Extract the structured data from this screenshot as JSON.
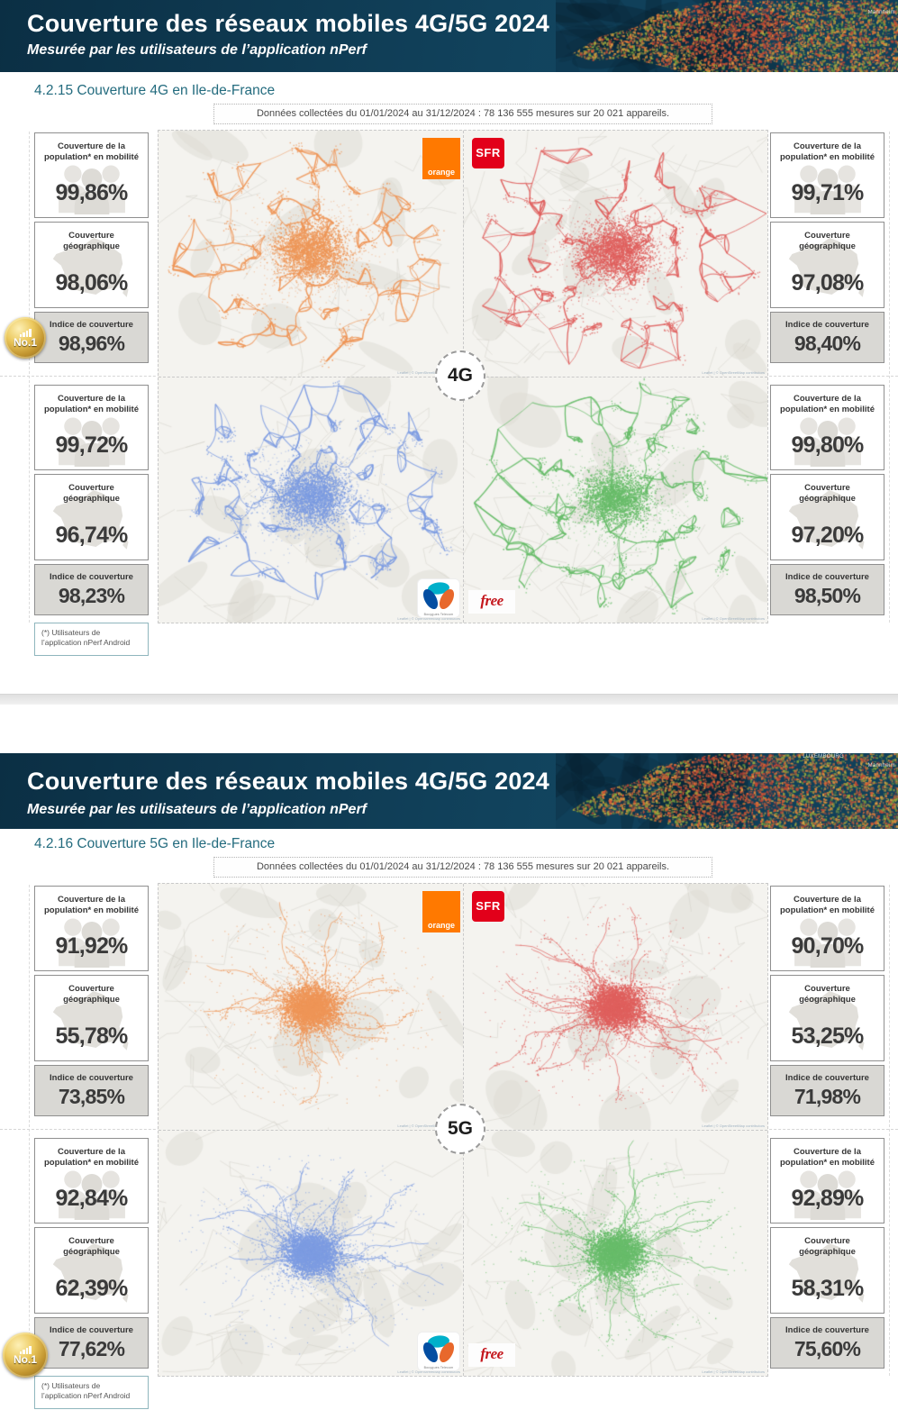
{
  "page": {
    "header": {
      "title": "Couverture des réseaux mobiles 4G/5G 2024",
      "subtitle": "Mesurée par les utilisateurs de l’application nPerf",
      "map_labels": [
        "LUXEMBOURG",
        "Mannheim"
      ]
    },
    "data_note": "Données collectées du 01/01/2024 au 31/12/2024 : 78 136 555 mesures sur 20 021 appareils.",
    "footnote": "(*) Utilisateurs de l’application nPerf Android",
    "badge_label": "No.1",
    "map_attribution": "Leaflet | © OpenStreetMap contributors",
    "stat_labels": {
      "population": "Couverture de la population* en mobilité",
      "geographic": "Couverture géographique",
      "index": "Indice de couverture"
    }
  },
  "sections": [
    {
      "section_title": "4.2.15 Couverture 4G en Ile-de-France",
      "tech_label": "4G",
      "operators": [
        {
          "name": "Orange",
          "logo_text": "orange",
          "color": "#ef9658",
          "population": "99,86%",
          "geographic": "98,06%",
          "index": "98,96%",
          "no1": true
        },
        {
          "name": "SFR",
          "logo_text": "SFR",
          "color": "#e0605e",
          "population": "99,71%",
          "geographic": "97,08%",
          "index": "98,40%",
          "no1": false
        },
        {
          "name": "Bouygues Telecom",
          "logo_text": "Bouygues Telecom",
          "color": "#7d9ce2",
          "population": "99,72%",
          "geographic": "96,74%",
          "index": "98,23%",
          "no1": false
        },
        {
          "name": "Free",
          "logo_text": "free",
          "color": "#68bd6a",
          "population": "99,80%",
          "geographic": "97,20%",
          "index": "98,50%",
          "no1": false
        }
      ]
    },
    {
      "section_title": "4.2.16 Couverture 5G en Ile-de-France",
      "tech_label": "5G",
      "operators": [
        {
          "name": "Orange",
          "logo_text": "orange",
          "color": "#ef9658",
          "population": "91,92%",
          "geographic": "55,78%",
          "index": "73,85%",
          "no1": false
        },
        {
          "name": "SFR",
          "logo_text": "SFR",
          "color": "#e0605e",
          "population": "90,70%",
          "geographic": "53,25%",
          "index": "71,98%",
          "no1": false
        },
        {
          "name": "Bouygues Telecom",
          "logo_text": "Bouygues Telecom",
          "color": "#7d9ce2",
          "population": "92,84%",
          "geographic": "62,39%",
          "index": "77,62%",
          "no1": true
        },
        {
          "name": "Free",
          "logo_text": "free",
          "color": "#68bd6a",
          "population": "92,89%",
          "geographic": "58,31%",
          "index": "75,60%",
          "no1": false
        }
      ]
    }
  ]
}
